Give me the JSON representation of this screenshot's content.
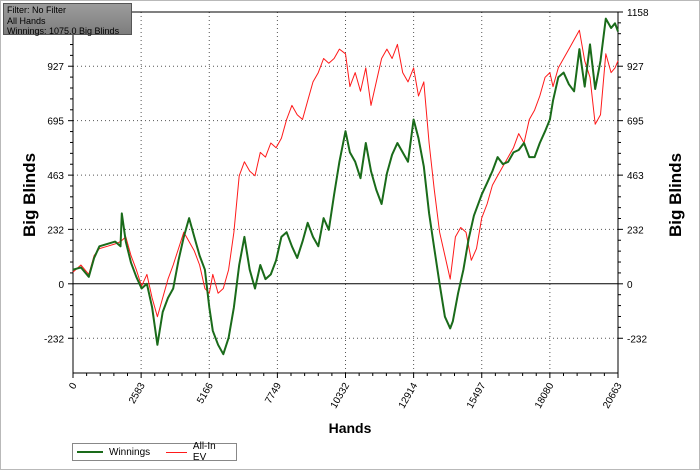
{
  "info": {
    "filter": "Filter: No Filter",
    "hands": "All Hands",
    "winnings": "Winnings: 1075.0 Big Blinds"
  },
  "colors": {
    "winnings": "#1a6b1a",
    "allin": "#ff1a1a"
  },
  "chart_data": {
    "type": "line",
    "xlabel": "Hands",
    "ylabel": "Big Blinds",
    "xlim": [
      0,
      20663
    ],
    "ylim": [
      -380,
      1158
    ],
    "x_ticks": [
      0,
      2583,
      5166,
      7749,
      10332,
      12914,
      15497,
      18080,
      20663
    ],
    "y_ticks": [
      -232,
      0,
      232,
      463,
      695,
      927,
      1158
    ],
    "grid": true,
    "legend": "bottom-left",
    "series": [
      {
        "name": "Winnings",
        "x": [
          0,
          300,
          600,
          800,
          1000,
          1300,
          1600,
          1800,
          1850,
          2000,
          2200,
          2400,
          2600,
          2800,
          3000,
          3200,
          3400,
          3600,
          3800,
          4000,
          4200,
          4400,
          4600,
          4800,
          5000,
          5166,
          5300,
          5500,
          5700,
          5900,
          6100,
          6300,
          6500,
          6700,
          6900,
          7100,
          7300,
          7500,
          7700,
          7900,
          8100,
          8300,
          8500,
          8700,
          8900,
          9100,
          9300,
          9500,
          9700,
          9900,
          10100,
          10332,
          10500,
          10700,
          10900,
          11100,
          11300,
          11500,
          11700,
          11900,
          12100,
          12300,
          12500,
          12700,
          12914,
          13100,
          13300,
          13500,
          13700,
          13900,
          14100,
          14300,
          14400,
          14600,
          14800,
          15000,
          15200,
          15497,
          15700,
          15900,
          16100,
          16300,
          16500,
          16700,
          16900,
          17100,
          17300,
          17500,
          17700,
          17900,
          18080,
          18200,
          18400,
          18600,
          18800,
          19000,
          19200,
          19400,
          19600,
          19800,
          20000,
          20200,
          20400,
          20550,
          20663
        ],
        "values": [
          60,
          70,
          30,
          110,
          160,
          170,
          180,
          160,
          300,
          180,
          90,
          30,
          -20,
          0,
          -100,
          -260,
          -120,
          -60,
          -20,
          100,
          200,
          280,
          200,
          120,
          60,
          -100,
          -200,
          -260,
          -300,
          -230,
          -100,
          80,
          200,
          60,
          -20,
          80,
          20,
          40,
          100,
          200,
          220,
          160,
          110,
          180,
          260,
          200,
          160,
          280,
          230,
          380,
          520,
          650,
          560,
          520,
          450,
          600,
          480,
          400,
          340,
          470,
          550,
          600,
          560,
          520,
          700,
          620,
          500,
          300,
          150,
          0,
          -140,
          -190,
          -160,
          -40,
          60,
          190,
          290,
          380,
          430,
          480,
          540,
          510,
          520,
          560,
          570,
          600,
          540,
          540,
          600,
          650,
          700,
          780,
          880,
          900,
          850,
          820,
          1000,
          840,
          1020,
          830,
          950,
          1130,
          1090,
          1110,
          1075
        ]
      },
      {
        "name": "All-In EV",
        "x": [
          0,
          300,
          600,
          800,
          1000,
          1300,
          1600,
          1800,
          2000,
          2200,
          2400,
          2600,
          2800,
          3000,
          3200,
          3400,
          3600,
          3800,
          4000,
          4200,
          4400,
          4600,
          4800,
          5000,
          5166,
          5300,
          5500,
          5700,
          5900,
          6100,
          6300,
          6500,
          6700,
          6900,
          7100,
          7300,
          7500,
          7700,
          7900,
          8100,
          8300,
          8500,
          8700,
          8900,
          9100,
          9300,
          9500,
          9700,
          9900,
          10100,
          10332,
          10500,
          10700,
          10900,
          11100,
          11300,
          11500,
          11700,
          11900,
          12100,
          12300,
          12500,
          12700,
          12914,
          13100,
          13300,
          13500,
          13700,
          13900,
          14100,
          14300,
          14500,
          14700,
          14900,
          15100,
          15300,
          15497,
          15700,
          15900,
          16100,
          16300,
          16500,
          16700,
          16900,
          17100,
          17300,
          17500,
          17700,
          17900,
          18080,
          18200,
          18400,
          18600,
          18800,
          19000,
          19200,
          19400,
          19600,
          19800,
          20000,
          20200,
          20400,
          20550,
          20663
        ],
        "values": [
          50,
          80,
          40,
          120,
          150,
          160,
          170,
          180,
          200,
          120,
          60,
          -10,
          40,
          -60,
          -140,
          -60,
          20,
          80,
          150,
          220,
          180,
          140,
          80,
          -20,
          -40,
          40,
          -40,
          -20,
          60,
          220,
          460,
          520,
          480,
          460,
          560,
          540,
          600,
          580,
          620,
          700,
          760,
          720,
          700,
          780,
          860,
          900,
          960,
          940,
          960,
          1000,
          980,
          840,
          900,
          820,
          920,
          760,
          860,
          960,
          1000,
          960,
          1020,
          900,
          860,
          920,
          800,
          860,
          600,
          400,
          220,
          120,
          20,
          200,
          240,
          220,
          100,
          150,
          280,
          340,
          420,
          460,
          500,
          540,
          580,
          640,
          600,
          700,
          740,
          800,
          880,
          900,
          840,
          920,
          960,
          1000,
          1040,
          1080,
          950,
          880,
          680,
          720,
          980,
          900,
          920,
          950
        ]
      }
    ]
  }
}
